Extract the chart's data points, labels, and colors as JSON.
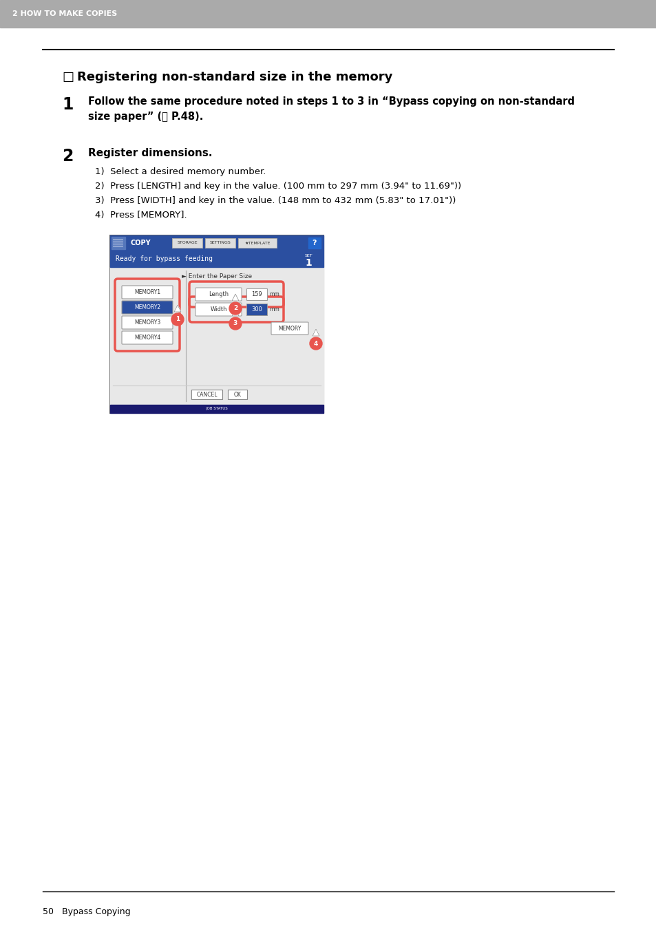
{
  "bg_color": "#ffffff",
  "header_bg": "#aaaaaa",
  "header_text": "2 HOW TO MAKE COPIES",
  "header_text_color": "#ffffff",
  "title_checkbox": "□",
  "title_text": " Registering non-standard size in the memory",
  "step1_num": "1",
  "step1_text_line1": "Follow the same procedure noted in steps 1 to 3 in “Bypass copying on non-standard",
  "step1_text_line2": "size paper” (⎙ P.48).",
  "step2_num": "2",
  "step2_title": "Register dimensions.",
  "step2_items": [
    "1)  Select a desired memory number.",
    "2)  Press [LENGTH] and key in the value. (100 mm to 297 mm (3.94\" to 11.69\"))",
    "3)  Press [WIDTH] and key in the value. (148 mm to 432 mm (5.83\" to 17.01\"))",
    "4)  Press [MEMORY]."
  ],
  "footer_text": "50   Bypass Copying",
  "screen_title": "COPY",
  "screen_status": "Ready for bypass feeding",
  "screen_subtitle": "► Enter the Paper Size",
  "memory_buttons": [
    "MEMORY1",
    "MEMORY2",
    "MEMORY3",
    "MEMORY4"
  ],
  "length_label": "Length",
  "length_value": "159",
  "length_unit": "mm",
  "width_label": "Width",
  "width_value": "300",
  "width_unit": "mm",
  "memory_btn_label": "MEMORY",
  "cancel_label": "CANCEL",
  "ok_label": "OK",
  "nav_buttons": [
    "STORAGE",
    "SETTINGS",
    "★TEMPLATE"
  ],
  "blue_color": "#2b4fa0",
  "memory2_color": "#2b4fa0",
  "width_value_color": "#2b4fa0",
  "circle_color": "#e8554e",
  "screen_bg": "#e8e8e8",
  "content_bg": "#e8e8e8",
  "job_status_color": "#1a1a6e"
}
